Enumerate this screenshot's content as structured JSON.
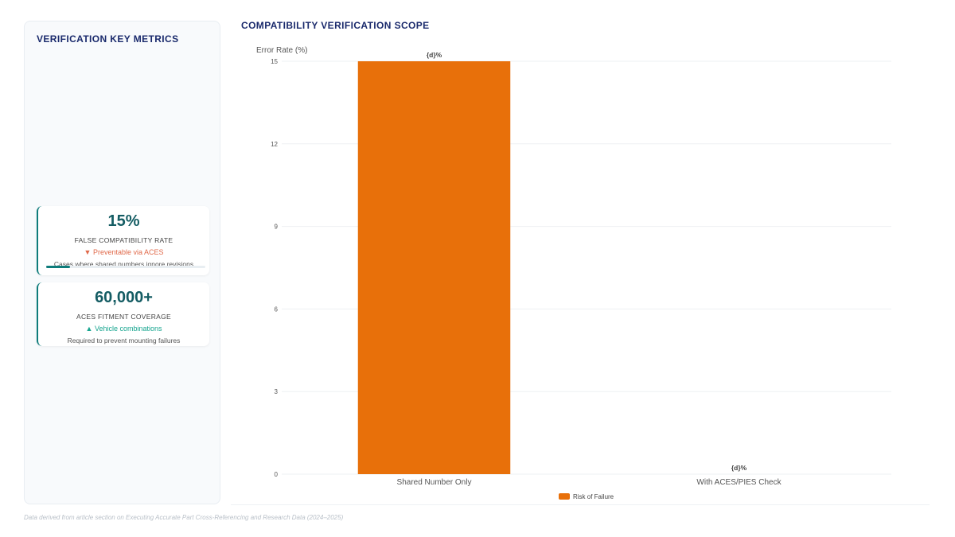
{
  "sidebar": {
    "title": "VERIFICATION KEY METRICS",
    "metrics": [
      {
        "value": "15%",
        "label": "FALSE COMPATIBILITY RATE",
        "trend_icon": "▼",
        "trend_text": "Preventable via ACES",
        "note": "Cases where shared numbers ignore revisions",
        "progress": 0.15
      },
      {
        "value": "60,000+",
        "label": "ACES FITMENT COVERAGE",
        "trend_icon": "▲",
        "trend_text": "Vehicle combinations",
        "note": "Required to prevent mounting failures"
      }
    ]
  },
  "chart_title": "COMPATIBILITY VERIFICATION SCOPE",
  "chart_data": {
    "type": "bar",
    "title": "COMPATIBILITY VERIFICATION SCOPE",
    "categories": [
      "Shared Number Only",
      "With ACES/PIES Check"
    ],
    "series": [
      {
        "name": "Risk of Failure",
        "values": [
          15,
          0
        ],
        "color": "#e8700a"
      }
    ],
    "data_labels": [
      "{d}%",
      "{d}%"
    ],
    "ylabel": "Error Rate (%)",
    "ylim": [
      0,
      15
    ],
    "yticks": [
      0,
      3,
      6,
      9,
      12,
      15
    ],
    "grid": true,
    "legend": "bottom-center"
  },
  "footnote": "Data derived from article section on Executing Accurate Part Cross-Referencing and Research Data (2024–2025)",
  "colors": {
    "accent": "#0e7c7b",
    "title": "#1a2a6c",
    "bar": "#e8700a",
    "down": "#e0694a",
    "up": "#17a58f"
  }
}
